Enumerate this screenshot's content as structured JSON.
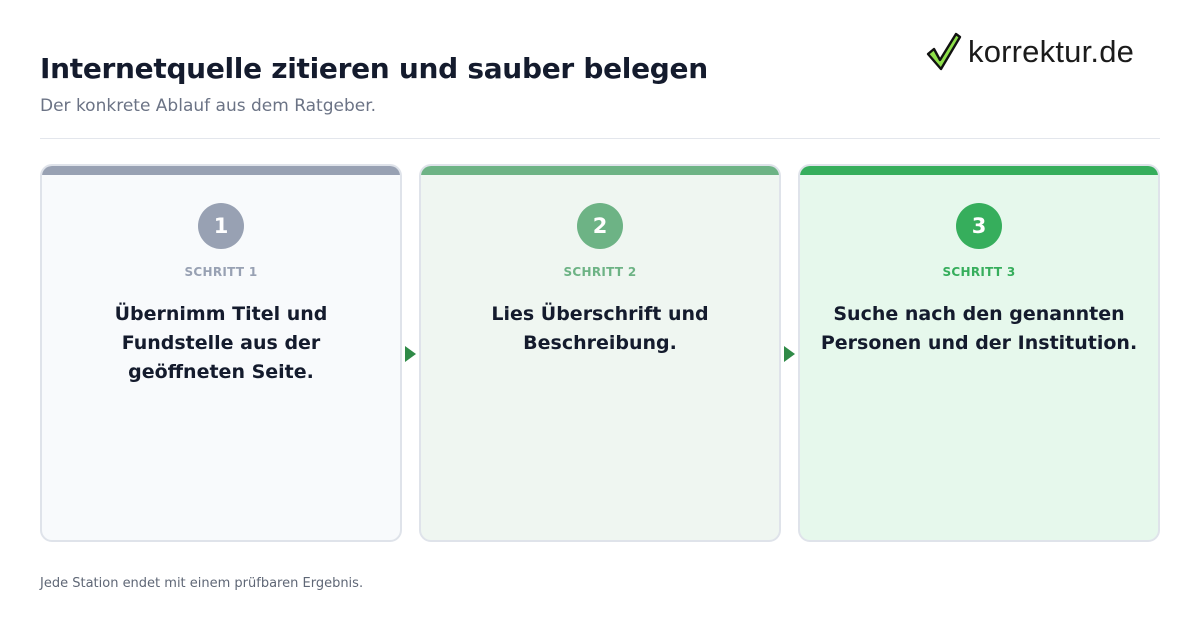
{
  "header": {
    "title": "Internetquelle zitieren und sauber belegen",
    "subtitle": "Der konkrete Ablauf aus dem Ratgeber.",
    "logo_text": "korrektur.de",
    "logo_icon": "checkmark-icon"
  },
  "steps": [
    {
      "number": "1",
      "label": "SCHRITT 1",
      "text": "Übernimm Titel und Fundstelle aus der geöffneten Seite.",
      "color": "#98a1b3"
    },
    {
      "number": "2",
      "label": "SCHRITT 2",
      "text": "Lies Überschrift und Beschreibung.",
      "color": "#6db385"
    },
    {
      "number": "3",
      "label": "SCHRITT 3",
      "text": "Suche nach den genannten Personen und der Institution.",
      "color": "#36ae5c"
    }
  ],
  "footer": {
    "note": "Jede Station endet mit einem prüfbaren Ergebnis."
  }
}
